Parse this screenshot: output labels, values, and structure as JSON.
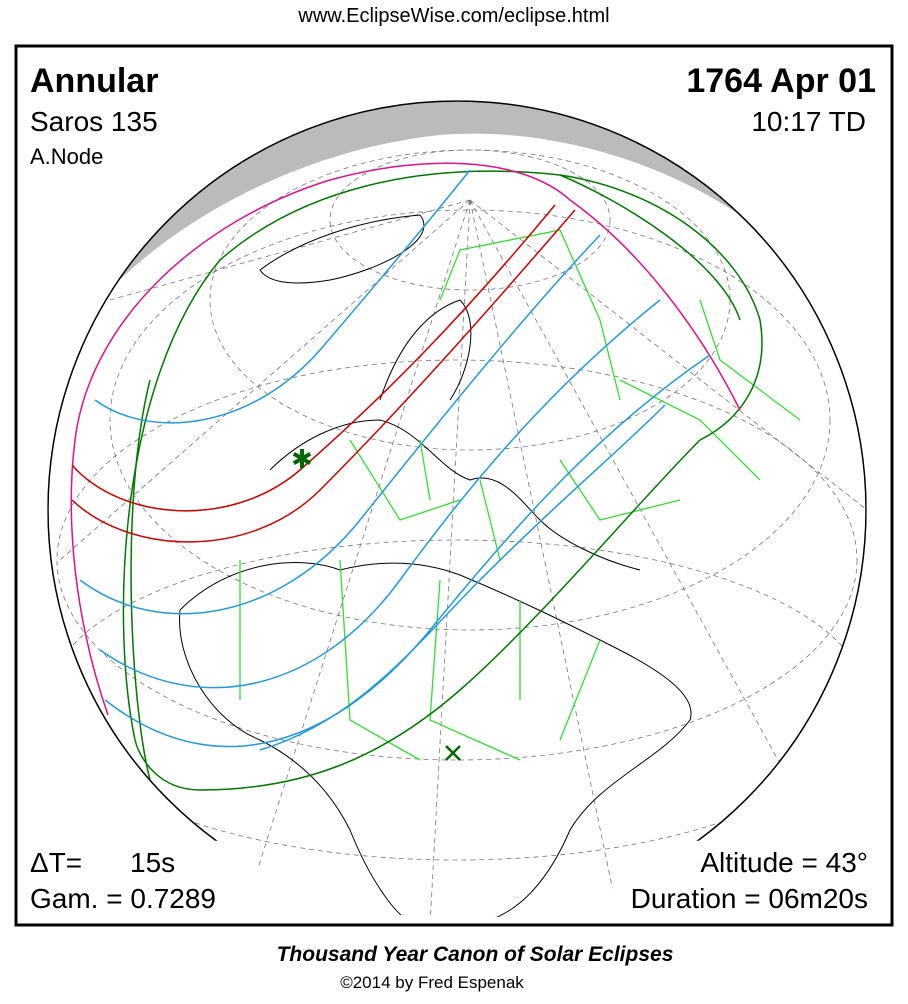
{
  "header": {
    "url": "www.EclipseWise.com/eclipse.html"
  },
  "eclipse": {
    "type": "Annular",
    "saros": "Saros 135",
    "node": "A.Node",
    "date": "1764 Apr 01",
    "time": "10:17 TD",
    "delta_t_label": "ΔT=",
    "delta_t_value": "15s",
    "gamma": "Gam. = 0.7289",
    "altitude": "Altitude = 43°",
    "duration": "Duration = 06m20s"
  },
  "footer": {
    "title": "Thousand Year Canon of Solar Eclipses",
    "copyright": "©2014 by Fred Espenak"
  }
}
